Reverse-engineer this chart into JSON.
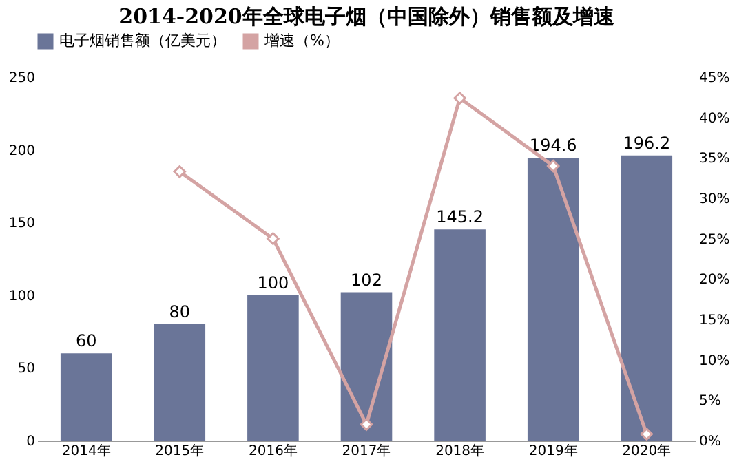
{
  "chart_data": {
    "type": "bar",
    "title": "2014-2020年全球电子烟（中国除外）销售额及增速",
    "categories": [
      "2014年",
      "2015年",
      "2016年",
      "2017年",
      "2018年",
      "2019年",
      "2020年"
    ],
    "series": [
      {
        "name": "电子烟销售额（亿美元）",
        "color": "#6a7598",
        "values": [
          60,
          80,
          100,
          102,
          145.2,
          194.6,
          196.2
        ],
        "value_labels": [
          "60",
          "80",
          "100",
          "102",
          "145.2",
          "194.6",
          "196.2"
        ]
      },
      {
        "name": "增速（%）",
        "type": "line",
        "axis": "y2",
        "color": "#d4a3a3",
        "marker": "diamond",
        "values": [
          null,
          33.3,
          25,
          2,
          42.4,
          34,
          0.8
        ]
      }
    ],
    "ylim": [
      0,
      250
    ],
    "yticks": [
      0,
      50,
      100,
      150,
      200,
      250
    ],
    "y2lim": [
      0,
      45
    ],
    "y2ticks": [
      {
        "value": 0,
        "label": "0%"
      },
      {
        "value": 5,
        "label": "5%"
      },
      {
        "value": 10,
        "label": "10%"
      },
      {
        "value": 15,
        "label": "15%"
      },
      {
        "value": 20,
        "label": "20%"
      },
      {
        "value": 25,
        "label": "25%"
      },
      {
        "value": 30,
        "label": "30%"
      },
      {
        "value": 35,
        "label": "35%"
      },
      {
        "value": 40,
        "label": "40%"
      },
      {
        "value": 45,
        "label": "45%"
      }
    ],
    "grid": false,
    "legend": "top"
  }
}
